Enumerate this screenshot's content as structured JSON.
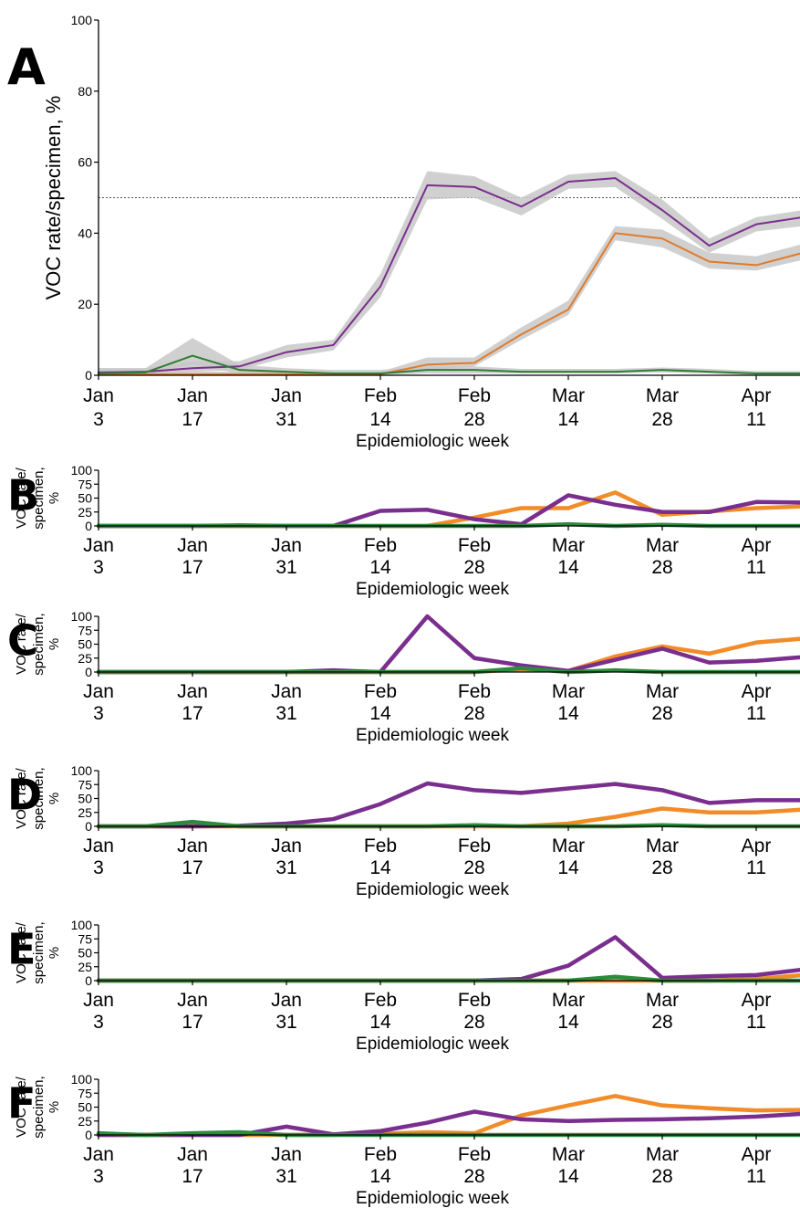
{
  "chart_data": [
    {
      "type": "line",
      "panel": "A",
      "ylabel": "VOC rate/specimen, %",
      "xlabel": "Epidemiologic week",
      "xlim": [
        0,
        15
      ],
      "ylim": [
        0,
        100
      ],
      "yticks": [
        0,
        20,
        40,
        60,
        80,
        100
      ],
      "x_ticks": [
        {
          "x": 0,
          "line1": "Jan",
          "line2": "3"
        },
        {
          "x": 2,
          "line1": "Jan",
          "line2": "17"
        },
        {
          "x": 4,
          "line1": "Jan",
          "line2": "31"
        },
        {
          "x": 6,
          "line1": "Feb",
          "line2": "14"
        },
        {
          "x": 8,
          "line1": "Feb",
          "line2": "28"
        },
        {
          "x": 10,
          "line1": "Mar",
          "line2": "14"
        },
        {
          "x": 12,
          "line1": "Mar",
          "line2": "28"
        },
        {
          "x": 14,
          "line1": "Apr",
          "line2": "11"
        }
      ],
      "x": [
        0,
        1,
        2,
        3,
        4,
        5,
        6,
        7,
        8,
        9,
        10,
        11,
        12,
        13,
        14,
        15
      ],
      "reference_line": 50,
      "series": [
        {
          "color": "#7a2e8e",
          "values": [
            0.8,
            1,
            2,
            2.5,
            6.5,
            8.5,
            25,
            53.5,
            53,
            47.5,
            54.5,
            55.5,
            46.5,
            36.5,
            42.5,
            44.5
          ],
          "ci_low": [
            0.3,
            0.5,
            1,
            1.5,
            5,
            7,
            22,
            49.5,
            50,
            45,
            52.5,
            53,
            44,
            34.5,
            40.5,
            42
          ],
          "ci_high": [
            2,
            2,
            4,
            4,
            8.5,
            10,
            28.5,
            57.5,
            56,
            50,
            56.5,
            57.5,
            49.5,
            38.5,
            44.5,
            46.5
          ]
        },
        {
          "color": "#e07b2a",
          "values": [
            0.3,
            0.3,
            0.3,
            0.3,
            0.3,
            0.3,
            0.3,
            3,
            3.5,
            11.5,
            18.5,
            40,
            38.5,
            32,
            31,
            34.5
          ],
          "ci_low": [
            0,
            0,
            0,
            0,
            0,
            0,
            0,
            1.5,
            2.5,
            10,
            17,
            38,
            36,
            30,
            29.5,
            32.5
          ],
          "ci_high": [
            1,
            1,
            1,
            1,
            1,
            1,
            1,
            5,
            5,
            13.5,
            21,
            42,
            41,
            34.5,
            33.5,
            37
          ]
        },
        {
          "color": "#2e7d32",
          "values": [
            0.5,
            0.8,
            5.5,
            1.5,
            1,
            0.5,
            0.5,
            1.5,
            1.5,
            1,
            1,
            1,
            1.5,
            1,
            0.5,
            0.5
          ],
          "ci_low": [
            0,
            0,
            3,
            0.5,
            0.3,
            0,
            0,
            0.5,
            0.5,
            0.5,
            0.5,
            0.5,
            0.8,
            0.5,
            0,
            0
          ],
          "ci_high": [
            2,
            2,
            10.5,
            3,
            2,
            1.5,
            1.5,
            2.5,
            2.5,
            1.8,
            1.8,
            1.8,
            2.2,
            1.8,
            1.2,
            1.2
          ]
        }
      ]
    },
    {
      "type": "line",
      "panel": "B",
      "ylabel_lines": [
        "VOC rate/",
        "specimen,",
        "%"
      ],
      "xlabel": "Epidemiologic week",
      "xlim": [
        0,
        15
      ],
      "ylim": [
        0,
        100
      ],
      "yticks": [
        0,
        25,
        50,
        75,
        100
      ],
      "x": [
        0,
        1,
        2,
        3,
        4,
        5,
        6,
        7,
        8,
        9,
        10,
        11,
        12,
        13,
        14,
        15
      ],
      "series": [
        {
          "color": "#f28c28",
          "values": [
            0,
            0,
            0,
            0,
            0,
            0,
            0,
            0,
            15,
            32,
            32,
            60,
            20,
            26,
            32,
            35
          ]
        },
        {
          "color": "#7a2e8e",
          "values": [
            0,
            0,
            0,
            1,
            0,
            0,
            27,
            29,
            12,
            3,
            55,
            38,
            25,
            25,
            43,
            42
          ]
        },
        {
          "color": "#2e8b3e",
          "values": [
            0,
            0,
            0,
            0,
            0,
            0,
            0,
            0,
            0,
            0,
            3,
            0,
            2,
            0,
            0,
            0
          ]
        }
      ]
    },
    {
      "type": "line",
      "panel": "C",
      "ylabel_lines": [
        "VOC rate/",
        "specimen,",
        "%"
      ],
      "xlabel": "Epidemiologic week",
      "xlim": [
        0,
        15
      ],
      "ylim": [
        0,
        100
      ],
      "yticks": [
        0,
        25,
        50,
        75,
        100
      ],
      "x": [
        0,
        1,
        2,
        3,
        4,
        5,
        6,
        7,
        8,
        9,
        10,
        11,
        12,
        13,
        14,
        15
      ],
      "series": [
        {
          "color": "#f28c28",
          "values": [
            0,
            0,
            0,
            0,
            0,
            0,
            0,
            0,
            0,
            5,
            2,
            28,
            46,
            33,
            53,
            60
          ]
        },
        {
          "color": "#7a2e8e",
          "values": [
            0,
            0,
            0,
            0,
            0,
            3,
            0,
            100,
            25,
            12,
            2,
            22,
            42,
            17,
            20,
            27
          ]
        },
        {
          "color": "#2e8b3e",
          "values": [
            0,
            0,
            0,
            0,
            0,
            0,
            0,
            0,
            0,
            7,
            0,
            3,
            0,
            0,
            0,
            0
          ]
        }
      ]
    },
    {
      "type": "line",
      "panel": "D",
      "ylabel_lines": [
        "VOC rate/",
        "specimen,",
        "%"
      ],
      "xlabel": "Epidemiologic week",
      "xlim": [
        0,
        15
      ],
      "ylim": [
        0,
        100
      ],
      "yticks": [
        0,
        25,
        50,
        75,
        100
      ],
      "x": [
        0,
        1,
        2,
        3,
        4,
        5,
        6,
        7,
        8,
        9,
        10,
        11,
        12,
        13,
        14,
        15
      ],
      "series": [
        {
          "color": "#f28c28",
          "values": [
            0,
            0,
            0,
            0,
            0,
            0,
            0,
            0,
            0,
            0,
            5,
            17,
            32,
            25,
            25,
            30
          ]
        },
        {
          "color": "#7a2e8e",
          "values": [
            0,
            0,
            0,
            1,
            5,
            13,
            40,
            77,
            65,
            60,
            68,
            76,
            65,
            42,
            47,
            47
          ]
        },
        {
          "color": "#2e8b3e",
          "values": [
            0,
            0,
            8,
            0,
            0,
            0,
            0,
            0,
            2,
            0,
            0,
            0,
            2,
            0,
            0,
            0
          ]
        }
      ]
    },
    {
      "type": "line",
      "panel": "E",
      "ylabel_lines": [
        "VOC rate/",
        "specimen,",
        "%"
      ],
      "xlabel": "Epidemiologic week",
      "xlim": [
        0,
        15
      ],
      "ylim": [
        0,
        100
      ],
      "yticks": [
        0,
        25,
        50,
        75,
        100
      ],
      "x": [
        0,
        1,
        2,
        3,
        4,
        5,
        6,
        7,
        8,
        9,
        10,
        11,
        12,
        13,
        14,
        15
      ],
      "series": [
        {
          "color": "#f28c28",
          "values": [
            0,
            0,
            0,
            0,
            0,
            0,
            0,
            0,
            0,
            0,
            0,
            0,
            0,
            0,
            3,
            10
          ]
        },
        {
          "color": "#7a2e8e",
          "values": [
            0,
            0,
            0,
            0,
            0,
            0,
            0,
            0,
            0,
            3,
            27,
            78,
            5,
            8,
            10,
            20
          ]
        },
        {
          "color": "#2e8b3e",
          "values": [
            0,
            0,
            0,
            0,
            0,
            0,
            0,
            0,
            0,
            0,
            0,
            7,
            0,
            0,
            0,
            0
          ]
        }
      ]
    },
    {
      "type": "line",
      "panel": "F",
      "ylabel_lines": [
        "VOC rate/",
        "specimen,",
        "%"
      ],
      "xlabel": "Epidemiologic week",
      "xlim": [
        0,
        15
      ],
      "ylim": [
        0,
        100
      ],
      "yticks": [
        0,
        25,
        50,
        75,
        100
      ],
      "x": [
        0,
        1,
        2,
        3,
        4,
        5,
        6,
        7,
        8,
        9,
        10,
        11,
        12,
        13,
        14,
        15
      ],
      "series": [
        {
          "color": "#f28c28",
          "values": [
            0,
            0,
            0,
            0,
            0,
            0,
            2,
            5,
            3,
            35,
            53,
            70,
            53,
            48,
            44,
            45
          ]
        },
        {
          "color": "#7a2e8e",
          "values": [
            0,
            0,
            0,
            0,
            15,
            1,
            7,
            22,
            42,
            28,
            25,
            27,
            28,
            30,
            33,
            38
          ]
        },
        {
          "color": "#2e8b3e",
          "values": [
            3,
            0,
            3,
            5,
            0,
            0,
            0,
            0,
            0,
            0,
            0,
            0,
            0,
            0,
            0,
            0
          ]
        }
      ]
    }
  ]
}
